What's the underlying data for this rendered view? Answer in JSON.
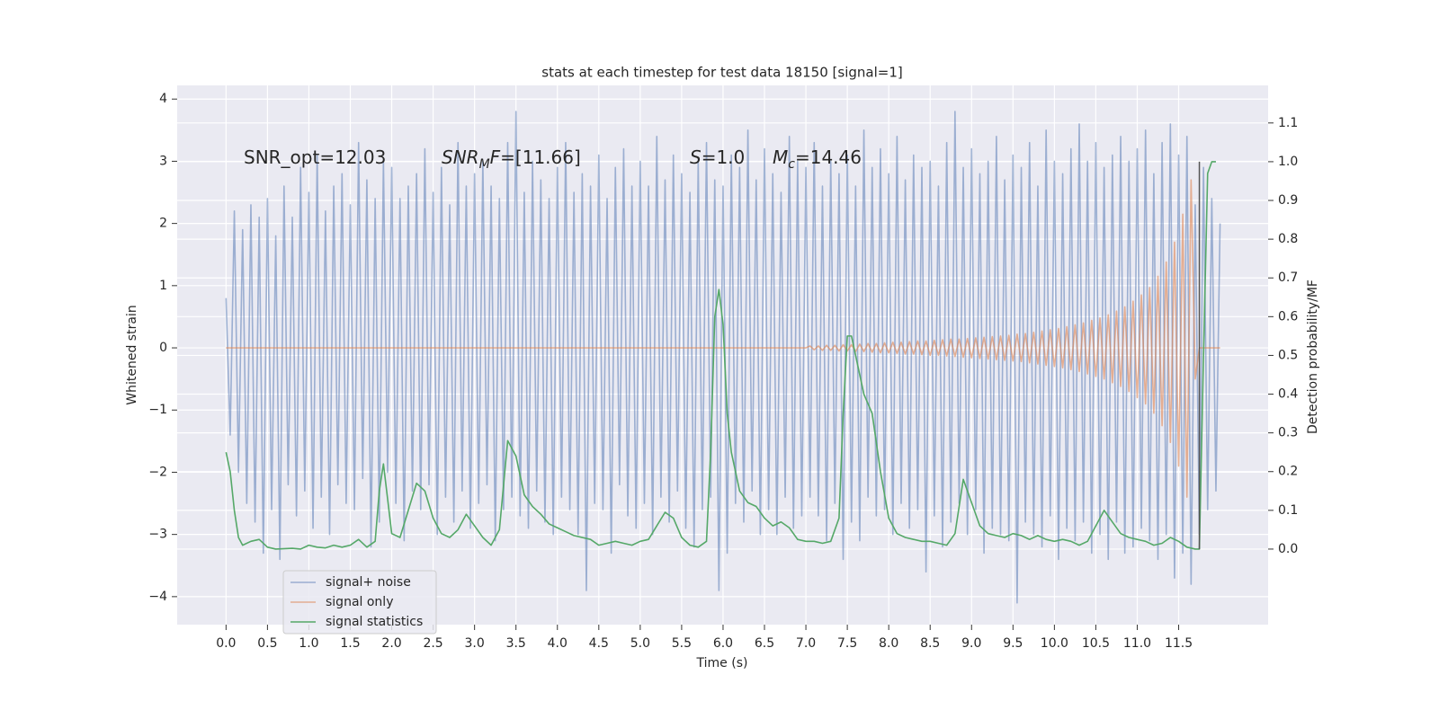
{
  "chart_data": {
    "type": "line",
    "title": "stats at each timestep for test data 18150 [signal=1]",
    "xlabel": "Time (s)",
    "ylabel": "Whitened strain",
    "y2label": "Detection probability/MF",
    "xlim": [
      -0.59,
      12.58
    ],
    "ylim": [
      -4.45,
      4.22
    ],
    "y2lim": [
      -0.195,
      1.197
    ],
    "xticks": [
      {
        "value": 0,
        "label": "0.0"
      },
      0.5,
      {
        "value": 1,
        "label": "1.0"
      },
      1.5,
      {
        "value": 2,
        "label": "2.0"
      },
      2.5,
      {
        "value": 3,
        "label": "3.0"
      },
      3.5,
      {
        "value": 4,
        "label": "4.0"
      },
      4.5,
      {
        "value": 5,
        "label": "5.0"
      },
      5.5,
      {
        "value": 6,
        "label": "6.0"
      },
      6.5,
      {
        "value": 7,
        "label": "7.0"
      },
      7.5,
      {
        "value": 8,
        "label": "8.0"
      },
      8.5,
      {
        "value": 9,
        "label": "9.0"
      },
      9.5,
      {
        "value": 10,
        "label": "10.0"
      },
      10.5,
      {
        "value": 11,
        "label": "11.0"
      },
      11.5
    ],
    "yticks": [
      {
        "value": -4,
        "label": "−4"
      },
      {
        "value": -3,
        "label": "−3"
      },
      {
        "value": -2,
        "label": "−2"
      },
      {
        "value": -1,
        "label": "−1"
      },
      0,
      1,
      2,
      3,
      4
    ],
    "y2ticks": [
      {
        "value": 0,
        "label": "0.0"
      },
      0.1,
      0.2,
      0.3,
      0.4,
      0.5,
      0.6,
      0.7,
      0.8,
      0.9,
      {
        "value": 1,
        "label": "1.0"
      },
      1.1
    ],
    "grid": true,
    "legend": "lower left",
    "annotations": [
      {
        "parts": [
          {
            "text": "SNR_opt=12.03"
          }
        ]
      },
      {
        "parts": [
          {
            "text": "SNR",
            "italic": true
          },
          {
            "text": "M",
            "italic": true,
            "sub": true
          },
          {
            "text": "F",
            "italic": true
          },
          {
            "text": "=[11.66]"
          }
        ]
      },
      {
        "parts": [
          {
            "text": "S",
            "italic": true
          },
          {
            "text": "=1.0"
          }
        ]
      },
      {
        "parts": [
          {
            "text": "M",
            "italic": true
          },
          {
            "text": "c",
            "italic": true,
            "sub": true
          },
          {
            "text": "=14.46"
          }
        ]
      }
    ],
    "x": [
      0,
      0.05,
      0.1,
      0.15,
      0.2,
      0.25,
      0.3,
      0.35,
      0.4,
      0.45,
      0.5,
      0.55,
      0.6,
      0.65,
      0.7,
      0.75,
      0.8,
      0.85,
      0.9,
      0.95,
      1,
      1.05,
      1.1,
      1.15,
      1.2,
      1.25,
      1.3,
      1.35,
      1.4,
      1.45,
      1.5,
      1.55,
      1.6,
      1.65,
      1.7,
      1.75,
      1.8,
      1.85,
      1.9,
      1.95,
      2,
      2.05,
      2.1,
      2.15,
      2.2,
      2.25,
      2.3,
      2.35,
      2.4,
      2.45,
      2.5,
      2.55,
      2.6,
      2.65,
      2.7,
      2.75,
      2.8,
      2.85,
      2.9,
      2.95,
      3,
      3.05,
      3.1,
      3.15,
      3.2,
      3.25,
      3.3,
      3.35,
      3.4,
      3.45,
      3.5,
      3.55,
      3.6,
      3.65,
      3.7,
      3.75,
      3.8,
      3.85,
      3.9,
      3.95,
      4,
      4.05,
      4.1,
      4.15,
      4.2,
      4.25,
      4.3,
      4.35,
      4.4,
      4.45,
      4.5,
      4.55,
      4.6,
      4.65,
      4.7,
      4.75,
      4.8,
      4.85,
      4.9,
      4.95,
      5,
      5.05,
      5.1,
      5.15,
      5.2,
      5.25,
      5.3,
      5.35,
      5.4,
      5.45,
      5.5,
      5.55,
      5.6,
      5.65,
      5.7,
      5.75,
      5.8,
      5.85,
      5.9,
      5.95,
      6,
      6.05,
      6.1,
      6.15,
      6.2,
      6.25,
      6.3,
      6.35,
      6.4,
      6.45,
      6.5,
      6.55,
      6.6,
      6.65,
      6.7,
      6.75,
      6.8,
      6.85,
      6.9,
      6.95,
      7,
      7.05,
      7.1,
      7.15,
      7.2,
      7.25,
      7.3,
      7.35,
      7.4,
      7.45,
      7.5,
      7.55,
      7.6,
      7.65,
      7.7,
      7.75,
      7.8,
      7.85,
      7.9,
      7.95,
      8,
      8.05,
      8.1,
      8.15,
      8.2,
      8.25,
      8.3,
      8.35,
      8.4,
      8.45,
      8.5,
      8.55,
      8.6,
      8.65,
      8.7,
      8.75,
      8.8,
      8.85,
      8.9,
      8.95,
      9,
      9.05,
      9.1,
      9.15,
      9.2,
      9.25,
      9.3,
      9.35,
      9.4,
      9.45,
      9.5,
      9.55,
      9.6,
      9.65,
      9.7,
      9.75,
      9.8,
      9.85,
      9.9,
      9.95,
      10,
      10.05,
      10.1,
      10.15,
      10.2,
      10.25,
      10.3,
      10.35,
      10.4,
      10.45,
      10.5,
      10.55,
      10.6,
      10.65,
      10.7,
      10.75,
      10.8,
      10.85,
      10.9,
      10.95,
      11,
      11.05,
      11.1,
      11.15,
      11.2,
      11.25,
      11.3,
      11.35,
      11.4,
      11.45,
      11.5,
      11.55,
      11.6,
      11.65,
      11.7,
      11.75,
      11.8,
      11.85,
      11.9,
      11.95,
      12
    ],
    "series": [
      {
        "name": "signal+ noise",
        "color": "#4c72b0",
        "opacity": 0.5,
        "values": [
          0.8,
          -1.4,
          2.2,
          -2.0,
          1.9,
          -2.5,
          2.3,
          -2.8,
          2.1,
          -3.3,
          2.4,
          -2.6,
          1.8,
          -3.4,
          2.6,
          -2.2,
          2.1,
          -2.7,
          2.9,
          -2.3,
          2.5,
          -2.9,
          3.1,
          -2.4,
          2.2,
          -3.0,
          2.6,
          -2.2,
          2.8,
          -2.5,
          2.3,
          -2.6,
          3.3,
          -2.1,
          2.7,
          -3.2,
          2.4,
          -2.8,
          3.0,
          -2.0,
          2.9,
          -2.5,
          2.4,
          -3.1,
          2.6,
          -2.3,
          2.8,
          -2.6,
          3.2,
          -2.2,
          2.5,
          -3.0,
          2.9,
          -2.4,
          2.3,
          -2.8,
          3.3,
          -2.3,
          2.6,
          -2.9,
          2.8,
          -2.5,
          3.0,
          -2.2,
          2.6,
          -3.1,
          2.4,
          -2.6,
          3.3,
          -2.4,
          3.8,
          -2.7,
          2.5,
          -2.9,
          3.0,
          -2.3,
          2.7,
          -2.8,
          2.4,
          -3.0,
          2.9,
          -2.4,
          3.3,
          -2.6,
          2.5,
          -3.0,
          2.8,
          -3.9,
          2.6,
          -2.5,
          3.1,
          -2.6,
          2.4,
          -3.3,
          2.9,
          -2.2,
          3.2,
          -2.7,
          2.6,
          -2.9,
          3.0,
          -2.5,
          2.6,
          -3.0,
          3.4,
          -2.4,
          2.7,
          -2.8,
          3.1,
          -2.3,
          2.8,
          -2.9,
          2.5,
          -3.2,
          3.0,
          -2.6,
          3.3,
          -2.4,
          2.7,
          -3.9,
          2.6,
          -3.3,
          3.1,
          -2.5,
          2.9,
          -2.8,
          3.5,
          -2.3,
          2.7,
          -3.0,
          3.2,
          -2.6,
          2.8,
          -3.0,
          2.5,
          -2.4,
          3.4,
          -2.9,
          3.0,
          -2.7,
          2.9,
          -2.4,
          3.3,
          -2.7,
          2.6,
          -3.1,
          3.0,
          -2.5,
          2.8,
          -3.4,
          3.1,
          -2.8,
          2.6,
          -3.1,
          3.5,
          -2.4,
          2.9,
          -2.7,
          3.2,
          -2.6,
          2.8,
          -3.0,
          3.4,
          -2.5,
          2.7,
          -2.9,
          3.1,
          -2.6,
          2.9,
          -3.6,
          3.0,
          -2.7,
          2.6,
          -3.2,
          3.3,
          -2.8,
          3.8,
          -2.5,
          2.9,
          -3.0,
          3.2,
          -2.6,
          2.8,
          -3.3,
          3.0,
          -2.9,
          3.4,
          -3.0,
          2.7,
          -3.1,
          3.1,
          -4.1,
          2.9,
          -2.8,
          3.3,
          -3.0,
          2.6,
          -3.2,
          3.5,
          -2.7,
          3.0,
          -3.4,
          2.8,
          -2.9,
          3.2,
          -3.1,
          3.6,
          -2.8,
          3.0,
          -3.3,
          3.3,
          -3.0,
          2.9,
          -3.4,
          3.1,
          -2.8,
          3.4,
          -3.3,
          3.0,
          -3.2,
          3.2,
          -2.9,
          3.5,
          -3.1,
          2.8,
          -3.4,
          3.3,
          -3.0,
          3.6,
          -3.7,
          3.1,
          -3.3,
          3.4,
          -3.8,
          2.3,
          -3.0,
          2.9,
          -2.6,
          2.4,
          -2.3,
          2.0
        ]
      },
      {
        "name": "signal only",
        "color": "#dd8452",
        "opacity": 0.6,
        "values": [
          0,
          0,
          0,
          0,
          0,
          0,
          0,
          0,
          0,
          0,
          0,
          0,
          0,
          0,
          0,
          0,
          0,
          0,
          0,
          0,
          0,
          0,
          0,
          0,
          0,
          0,
          0,
          0,
          0,
          0,
          0,
          0,
          0,
          0,
          0,
          0,
          0,
          0,
          0,
          0,
          0,
          0,
          0,
          0,
          0,
          0,
          0,
          0,
          0,
          0,
          0,
          0,
          0,
          0,
          0,
          0,
          0,
          0,
          0,
          0,
          0,
          0,
          0,
          0,
          0,
          0,
          0,
          0,
          0,
          0,
          0,
          0,
          0,
          0,
          0,
          0,
          0,
          0,
          0,
          0,
          0,
          0,
          0,
          0,
          0,
          0,
          0,
          0,
          0,
          0,
          0,
          0,
          0,
          0,
          0,
          0,
          0,
          0,
          0,
          0,
          0,
          0,
          0,
          0,
          0,
          0,
          0,
          0,
          0,
          0,
          0,
          0,
          0,
          0,
          0,
          0,
          0,
          0,
          0,
          0,
          0,
          0,
          0,
          0,
          0,
          0,
          0,
          0,
          0,
          0,
          0,
          0,
          0,
          0,
          0,
          0,
          0,
          0,
          0,
          0,
          0,
          0.03,
          -0.03,
          0.03,
          -0.04,
          0.04,
          -0.04,
          0.04,
          -0.05,
          0.05,
          -0.05,
          0.05,
          -0.06,
          0.06,
          -0.06,
          0.07,
          -0.07,
          0.07,
          -0.08,
          0.08,
          -0.08,
          0.09,
          -0.09,
          0.09,
          -0.1,
          0.1,
          -0.1,
          0.11,
          -0.11,
          0.11,
          -0.12,
          0.12,
          -0.12,
          0.13,
          -0.13,
          0.14,
          -0.14,
          0.14,
          -0.15,
          0.15,
          -0.16,
          0.16,
          -0.17,
          0.17,
          -0.18,
          0.18,
          -0.19,
          0.19,
          -0.2,
          0.2,
          -0.21,
          0.22,
          -0.22,
          0.23,
          -0.24,
          0.25,
          -0.26,
          0.27,
          -0.28,
          0.29,
          -0.3,
          0.31,
          -0.32,
          0.34,
          -0.35,
          0.37,
          -0.38,
          0.4,
          -0.42,
          0.44,
          -0.46,
          0.48,
          -0.5,
          0.53,
          -0.56,
          0.59,
          -0.62,
          0.66,
          -0.7,
          0.75,
          -0.8,
          0.85,
          -0.9,
          0.97,
          -1.05,
          1.15,
          -1.25,
          1.38,
          -1.52,
          1.7,
          -1.9,
          2.15,
          -2.4,
          2.7,
          -0.5,
          0,
          0,
          0,
          0,
          0,
          0
        ]
      },
      {
        "name": "signal statistics",
        "color": "#55a868",
        "opacity": 1,
        "axis": "y2",
        "x": [
          0,
          0.05,
          0.1,
          0.15,
          0.2,
          0.3,
          0.4,
          0.5,
          0.6,
          0.8,
          0.9,
          1.0,
          1.1,
          1.2,
          1.3,
          1.4,
          1.5,
          1.6,
          1.7,
          1.8,
          1.85,
          1.9,
          2.0,
          2.1,
          2.2,
          2.3,
          2.4,
          2.5,
          2.6,
          2.7,
          2.8,
          2.9,
          3.0,
          3.1,
          3.2,
          3.3,
          3.4,
          3.5,
          3.6,
          3.7,
          3.8,
          3.9,
          4.0,
          4.1,
          4.2,
          4.4,
          4.5,
          4.6,
          4.7,
          4.8,
          4.9,
          5.0,
          5.1,
          5.2,
          5.3,
          5.4,
          5.5,
          5.6,
          5.7,
          5.8,
          5.85,
          5.9,
          5.95,
          6.0,
          6.05,
          6.1,
          6.2,
          6.3,
          6.4,
          6.5,
          6.6,
          6.7,
          6.8,
          6.9,
          7.0,
          7.1,
          7.2,
          7.3,
          7.4,
          7.45,
          7.5,
          7.55,
          7.6,
          7.7,
          7.8,
          7.9,
          8.0,
          8.1,
          8.2,
          8.3,
          8.4,
          8.5,
          8.6,
          8.7,
          8.8,
          8.9,
          9.0,
          9.1,
          9.2,
          9.3,
          9.4,
          9.5,
          9.6,
          9.7,
          9.8,
          9.9,
          10.0,
          10.1,
          10.2,
          10.3,
          10.4,
          10.5,
          10.6,
          10.7,
          10.8,
          10.9,
          11.0,
          11.1,
          11.2,
          11.3,
          11.4,
          11.5,
          11.6,
          11.7,
          11.75,
          11.8,
          11.85,
          11.9,
          11.95
        ],
        "values": [
          0.25,
          0.2,
          0.1,
          0.03,
          0.01,
          0.02,
          0.025,
          0.005,
          0,
          0.002,
          0,
          0.01,
          0.005,
          0.003,
          0.01,
          0.005,
          0.01,
          0.025,
          0.005,
          0.02,
          0.15,
          0.22,
          0.04,
          0.03,
          0.1,
          0.17,
          0.15,
          0.08,
          0.04,
          0.03,
          0.05,
          0.09,
          0.06,
          0.03,
          0.01,
          0.05,
          0.28,
          0.24,
          0.14,
          0.11,
          0.09,
          0.065,
          0.055,
          0.045,
          0.035,
          0.025,
          0.01,
          0.015,
          0.02,
          0.015,
          0.01,
          0.02,
          0.025,
          0.06,
          0.095,
          0.08,
          0.03,
          0.01,
          0.005,
          0.02,
          0.25,
          0.6,
          0.67,
          0.58,
          0.35,
          0.25,
          0.15,
          0.12,
          0.11,
          0.08,
          0.06,
          0.07,
          0.055,
          0.025,
          0.02,
          0.02,
          0.015,
          0.02,
          0.08,
          0.35,
          0.55,
          0.55,
          0.5,
          0.4,
          0.35,
          0.2,
          0.08,
          0.04,
          0.03,
          0.025,
          0.02,
          0.02,
          0.015,
          0.01,
          0.04,
          0.18,
          0.12,
          0.06,
          0.04,
          0.035,
          0.03,
          0.04,
          0.035,
          0.025,
          0.035,
          0.025,
          0.02,
          0.025,
          0.02,
          0.01,
          0.02,
          0.06,
          0.1,
          0.07,
          0.04,
          0.03,
          0.025,
          0.02,
          0.01,
          0.015,
          0.03,
          0.02,
          0.005,
          0,
          0,
          0.5,
          0.97,
          1.0,
          1.0
        ]
      }
    ],
    "vline": {
      "x": 11.75,
      "ymin": 0,
      "ymax": 1,
      "axis": "y2",
      "color": "#555555"
    }
  }
}
